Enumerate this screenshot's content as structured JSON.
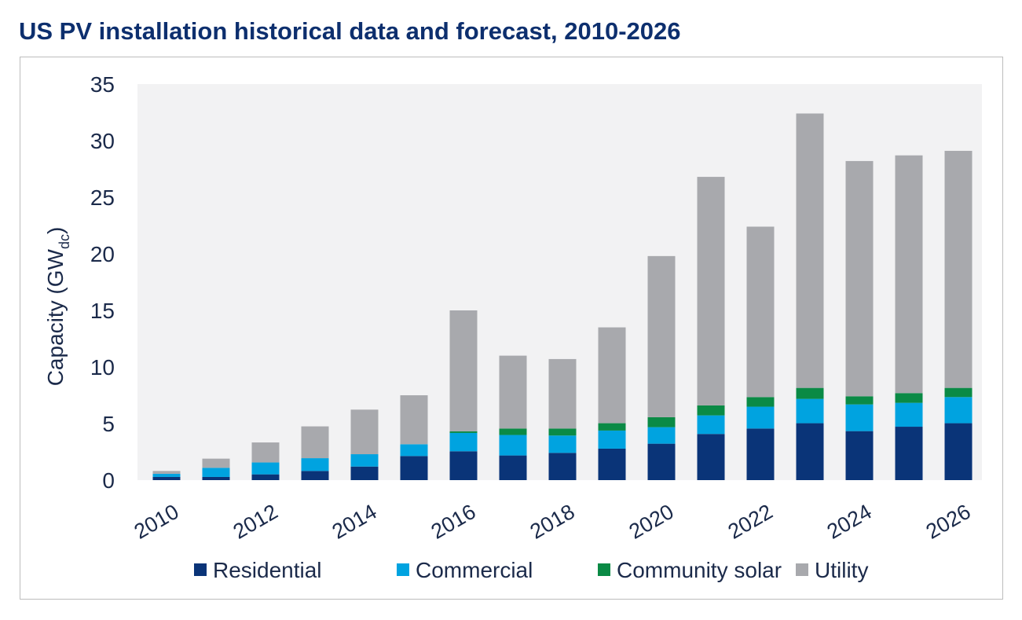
{
  "chart_data": {
    "type": "bar",
    "stacked": true,
    "title": "US PV installation historical data and forecast, 2010-2026",
    "xlabel": "",
    "ylabel": "Capacity (GW",
    "ylabel_subscript": "dc",
    "ylabel_close": ")",
    "ylim": [
      0,
      35
    ],
    "yticks": [
      0,
      5,
      10,
      15,
      20,
      25,
      30,
      35
    ],
    "grid": false,
    "legend_position": "bottom",
    "categories": [
      "2010",
      "2011",
      "2012",
      "2013",
      "2014",
      "2015",
      "2016",
      "2017",
      "2018",
      "2019",
      "2020",
      "2021",
      "2022",
      "2023",
      "2024",
      "2025",
      "2026"
    ],
    "xtick_labels": [
      "2010",
      "2012",
      "2014",
      "2016",
      "2018",
      "2020",
      "2022",
      "2024",
      "2026"
    ],
    "series": [
      {
        "name": "Residential",
        "color": "#0a3478",
        "values": [
          0.28,
          0.28,
          0.51,
          0.81,
          1.2,
          2.13,
          2.55,
          2.18,
          2.41,
          2.78,
          3.22,
          4.08,
          4.56,
          5.03,
          4.33,
          4.72,
          5.03
        ]
      },
      {
        "name": "Commercial",
        "color": "#00a3e0",
        "values": [
          0.28,
          0.81,
          1.05,
          1.13,
          1.09,
          1.04,
          1.62,
          1.81,
          1.53,
          1.6,
          1.46,
          1.64,
          1.93,
          2.15,
          2.36,
          2.11,
          2.31
        ]
      },
      {
        "name": "Community solar",
        "color": "#0a8a45",
        "values": [
          0,
          0,
          0,
          0,
          0,
          0,
          0.14,
          0.57,
          0.62,
          0.65,
          0.88,
          0.88,
          0.85,
          0.97,
          0.72,
          0.86,
          0.81
        ]
      },
      {
        "name": "Utility",
        "color": "#a8a9ad",
        "values": [
          0.25,
          0.81,
          1.77,
          2.81,
          3.94,
          4.33,
          10.69,
          6.44,
          6.14,
          8.47,
          14.24,
          20.2,
          15.06,
          24.25,
          20.79,
          21.01,
          20.95
        ]
      }
    ],
    "plot_background": "#f2f2f3"
  }
}
